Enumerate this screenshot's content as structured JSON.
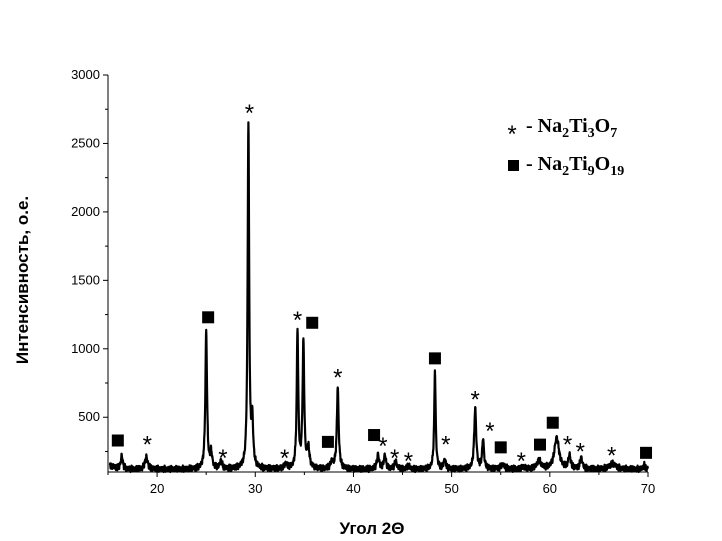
{
  "chart_data": {
    "type": "line",
    "xlabel": "Угол 2Θ",
    "ylabel": "Интенсивность, о.е.",
    "xlim": [
      15,
      70
    ],
    "ylim": [
      100,
      3000
    ],
    "x_ticks": [
      20,
      30,
      40,
      50,
      60,
      70
    ],
    "y_ticks": [
      500,
      1000,
      1500,
      2000,
      2500,
      3000
    ],
    "legend": {
      "placement": "top-right",
      "entries": [
        {
          "symbol": "*",
          "label": "- Na2Ti3O7",
          "parts": [
            "- Na",
            "2",
            "Ti",
            "3",
            "O",
            "7"
          ]
        },
        {
          "symbol": "■",
          "label": "- Na2Ti9O19",
          "parts": [
            "- Na",
            "2",
            "Ti",
            "9",
            "O",
            "19"
          ]
        }
      ]
    },
    "baseline": 120,
    "peaks": [
      {
        "x": 16.4,
        "y": 220,
        "w": 0.12
      },
      {
        "x": 18.9,
        "y": 210,
        "w": 0.16
      },
      {
        "x": 25.0,
        "y": 1120,
        "w": 0.1
      },
      {
        "x": 25.5,
        "y": 230,
        "w": 0.12
      },
      {
        "x": 26.5,
        "y": 175,
        "w": 0.14
      },
      {
        "x": 29.3,
        "y": 2650,
        "w": 0.09
      },
      {
        "x": 29.7,
        "y": 450,
        "w": 0.1
      },
      {
        "x": 33.1,
        "y": 155,
        "w": 0.16
      },
      {
        "x": 34.3,
        "y": 1130,
        "w": 0.09
      },
      {
        "x": 34.9,
        "y": 1040,
        "w": 0.1
      },
      {
        "x": 35.4,
        "y": 260,
        "w": 0.14
      },
      {
        "x": 37.8,
        "y": 170,
        "w": 0.15
      },
      {
        "x": 38.4,
        "y": 720,
        "w": 0.11
      },
      {
        "x": 42.5,
        "y": 225,
        "w": 0.13
      },
      {
        "x": 43.2,
        "y": 220,
        "w": 0.13
      },
      {
        "x": 44.3,
        "y": 175,
        "w": 0.14
      },
      {
        "x": 45.6,
        "y": 145,
        "w": 0.15
      },
      {
        "x": 48.3,
        "y": 840,
        "w": 0.09
      },
      {
        "x": 49.3,
        "y": 190,
        "w": 0.12
      },
      {
        "x": 52.4,
        "y": 560,
        "w": 0.12
      },
      {
        "x": 53.2,
        "y": 340,
        "w": 0.11
      },
      {
        "x": 55.2,
        "y": 150,
        "w": 0.25
      },
      {
        "x": 57.3,
        "y": 135,
        "w": 0.18
      },
      {
        "x": 58.9,
        "y": 180,
        "w": 0.25
      },
      {
        "x": 60.7,
        "y": 350,
        "w": 0.28
      },
      {
        "x": 62.0,
        "y": 220,
        "w": 0.14
      },
      {
        "x": 63.2,
        "y": 200,
        "w": 0.14
      },
      {
        "x": 66.4,
        "y": 160,
        "w": 0.4
      },
      {
        "x": 69.6,
        "y": 150,
        "w": 0.12
      }
    ],
    "markers": [
      {
        "x": 16.0,
        "y": 330,
        "type": "square"
      },
      {
        "x": 19.0,
        "y": 330,
        "type": "star"
      },
      {
        "x": 25.2,
        "y": 1230,
        "type": "square"
      },
      {
        "x": 26.7,
        "y": 230,
        "type": "star"
      },
      {
        "x": 29.4,
        "y": 2750,
        "type": "star"
      },
      {
        "x": 33.0,
        "y": 230,
        "type": "star"
      },
      {
        "x": 34.3,
        "y": 1240,
        "type": "star"
      },
      {
        "x": 35.8,
        "y": 1190,
        "type": "square"
      },
      {
        "x": 38.4,
        "y": 820,
        "type": "star"
      },
      {
        "x": 37.4,
        "y": 320,
        "type": "square"
      },
      {
        "x": 42.1,
        "y": 370,
        "type": "square"
      },
      {
        "x": 43.0,
        "y": 320,
        "type": "star"
      },
      {
        "x": 44.2,
        "y": 230,
        "type": "star"
      },
      {
        "x": 45.6,
        "y": 210,
        "type": "star"
      },
      {
        "x": 48.3,
        "y": 930,
        "type": "square"
      },
      {
        "x": 49.4,
        "y": 330,
        "type": "star"
      },
      {
        "x": 52.4,
        "y": 660,
        "type": "star"
      },
      {
        "x": 53.9,
        "y": 430,
        "type": "star"
      },
      {
        "x": 55.0,
        "y": 280,
        "type": "square"
      },
      {
        "x": 57.1,
        "y": 210,
        "type": "star"
      },
      {
        "x": 59.0,
        "y": 300,
        "type": "square"
      },
      {
        "x": 60.3,
        "y": 460,
        "type": "square"
      },
      {
        "x": 61.8,
        "y": 330,
        "type": "star"
      },
      {
        "x": 63.1,
        "y": 280,
        "type": "star"
      },
      {
        "x": 66.3,
        "y": 250,
        "type": "star"
      },
      {
        "x": 69.8,
        "y": 240,
        "type": "square"
      }
    ]
  }
}
